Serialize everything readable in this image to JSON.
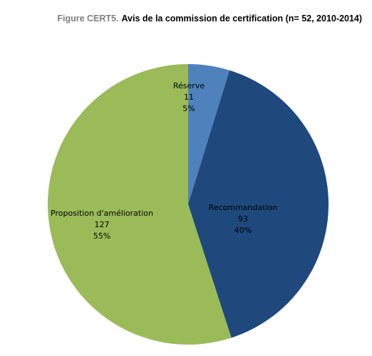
{
  "chart_data": {
    "type": "pie",
    "title_prefix": "Figure CERT5.",
    "title": "Avis de la commission de certification (n= 52, 2010-2014)",
    "categories": [
      "Réserve",
      "Recommandation",
      "Proposition d'amélioration"
    ],
    "values": [
      11,
      93,
      127
    ],
    "percents": [
      {
        "value": 5,
        "label": "5%"
      },
      {
        "value": 40,
        "label": "40%"
      },
      {
        "value": 55,
        "label": "55%"
      }
    ],
    "colors": [
      "#4f81bd",
      "#1f497d",
      "#9bbb59"
    ]
  }
}
